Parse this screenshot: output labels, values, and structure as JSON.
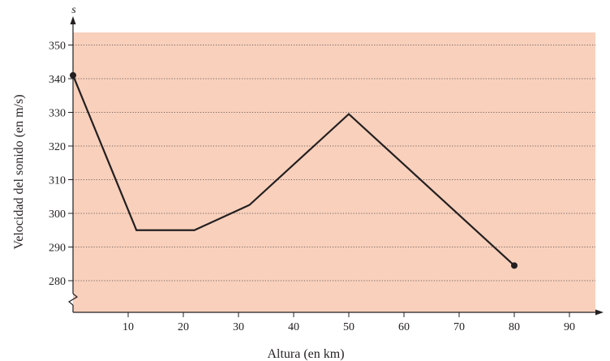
{
  "chart_data": {
    "type": "line",
    "title": "",
    "xlabel": "Altura (en km)",
    "ylabel": "Velocidad del sonido (en m/s)",
    "y_axis_variable": "s",
    "x_ticks": [
      10,
      20,
      30,
      40,
      50,
      60,
      70,
      80,
      90
    ],
    "y_ticks": [
      280,
      290,
      300,
      310,
      320,
      330,
      340,
      350
    ],
    "xlim": [
      0,
      95
    ],
    "ylim": [
      270,
      354
    ],
    "y_axis_break": true,
    "grid": "horizontal-dotted",
    "colors": {
      "plot_background": "#f8d0bc",
      "line": "#231f20"
    },
    "series": [
      {
        "x": [
          0,
          11.5,
          22,
          32,
          50,
          80
        ],
        "y": [
          341,
          295,
          295,
          302.5,
          329.5,
          284.5
        ],
        "endpoint_markers": true
      }
    ]
  }
}
